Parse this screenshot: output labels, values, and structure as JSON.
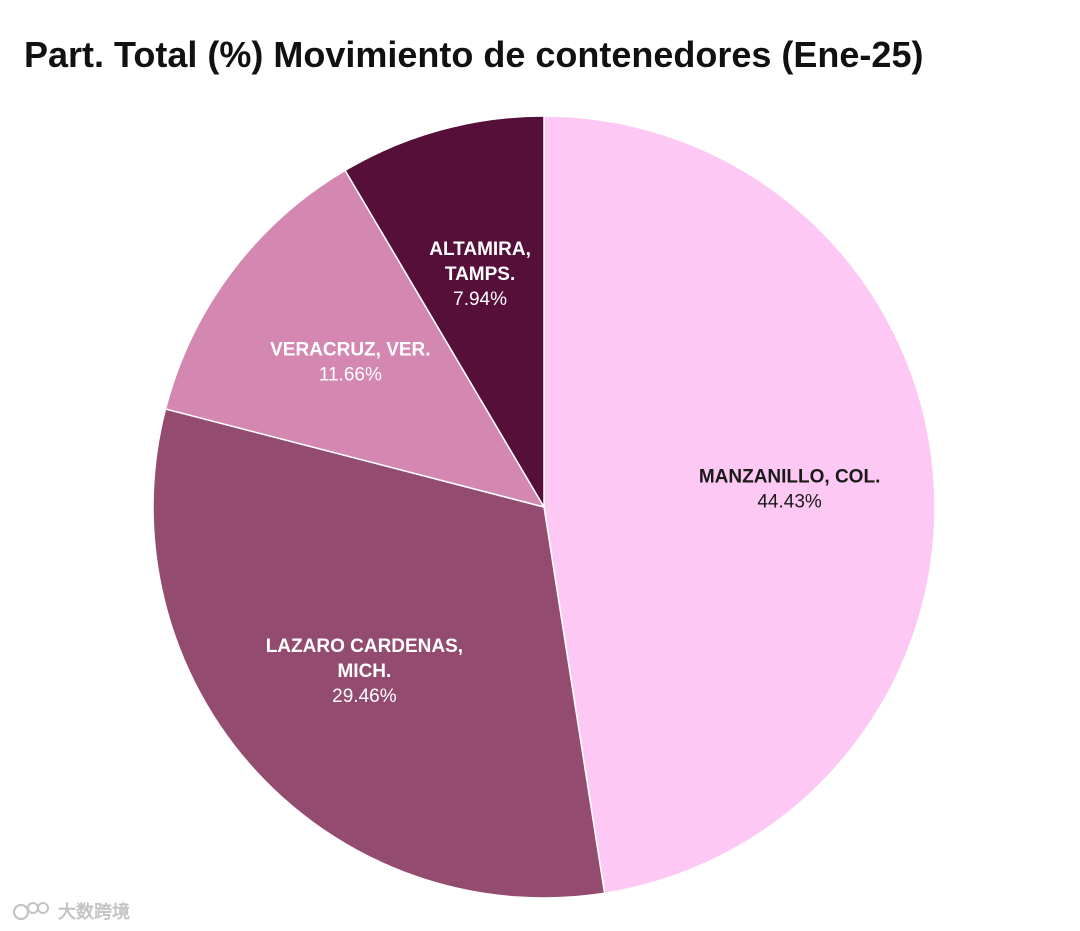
{
  "chart_data": {
    "type": "pie",
    "title": "Part. Total (%) Movimiento de contenedores (Ene-25)",
    "slices": [
      {
        "label_lines": [
          "MANZANILLO, COL."
        ],
        "value": 44.43,
        "value_label": "44.43%",
        "color": "#fdc8f3",
        "text_color": "#1a1a1a"
      },
      {
        "label_lines": [
          "LAZARO CARDENAS,",
          "MICH."
        ],
        "value": 29.46,
        "value_label": "29.46%",
        "color": "#944b70",
        "text_color": "#ffffff"
      },
      {
        "label_lines": [
          "VERACRUZ, VER."
        ],
        "value": 11.66,
        "value_label": "11.66%",
        "color": "#d488b1",
        "text_color": "#ffffff"
      },
      {
        "label_lines": [
          "ALTAMIRA,",
          "TAMPS."
        ],
        "value": 7.94,
        "value_label": "7.94%",
        "color": "#560f38",
        "text_color": "#ffffff"
      }
    ],
    "start": "12 o'clock",
    "direction": "clockwise",
    "legend": "none"
  },
  "watermark": {
    "icon": "watermark-logo-icon",
    "text": "大数跨境"
  }
}
